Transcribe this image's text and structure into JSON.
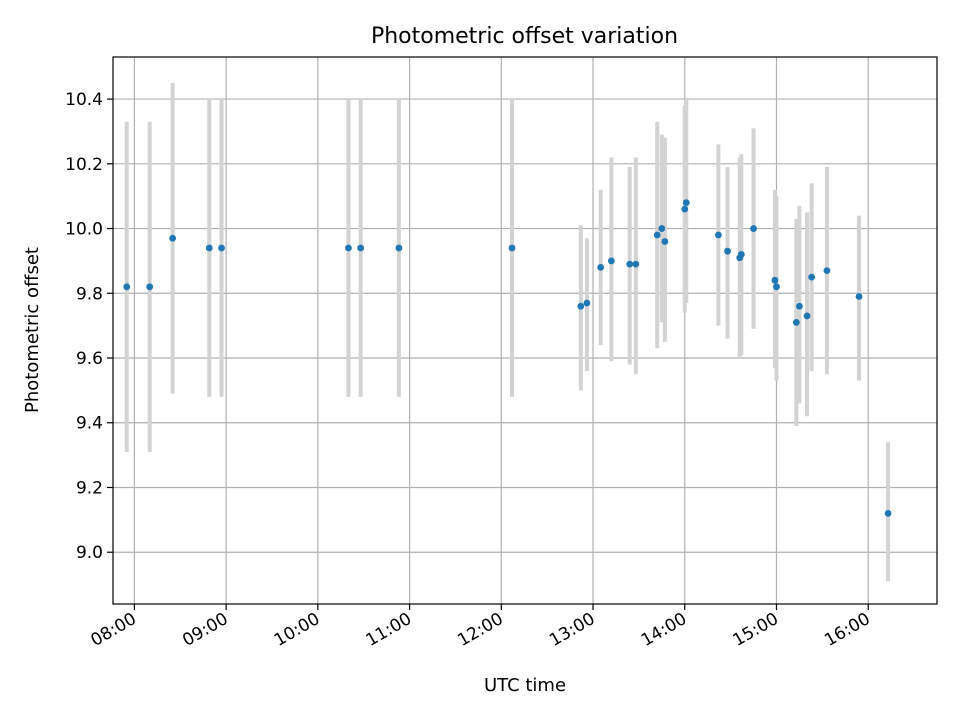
{
  "chart_data": {
    "type": "scatter",
    "title": "Photometric offset variation",
    "xlabel": "UTC time",
    "ylabel": "Photometric offset",
    "x_axis_type": "time",
    "xlim": [
      "07:46",
      "16:45"
    ],
    "ylim": [
      8.84,
      10.53
    ],
    "xticks": [
      "08:00",
      "09:00",
      "10:00",
      "11:00",
      "12:00",
      "13:00",
      "14:00",
      "15:00",
      "16:00"
    ],
    "yticks": [
      "9.0",
      "9.2",
      "9.4",
      "9.6",
      "9.8",
      "10.0",
      "10.2",
      "10.4"
    ],
    "grid": true,
    "error_bars": true,
    "colors": {
      "points": "#1f77b4",
      "error_bars": "#d3d3d3",
      "grid": "#b0b0b0"
    },
    "points": [
      {
        "x": "07:55",
        "y": 9.82,
        "ylow": 9.31,
        "yhigh": 10.33
      },
      {
        "x": "08:10",
        "y": 9.82,
        "ylow": 9.31,
        "yhigh": 10.33
      },
      {
        "x": "08:25",
        "y": 9.97,
        "ylow": 9.49,
        "yhigh": 10.45
      },
      {
        "x": "08:49",
        "y": 9.94,
        "ylow": 9.48,
        "yhigh": 10.4
      },
      {
        "x": "08:57",
        "y": 9.94,
        "ylow": 9.48,
        "yhigh": 10.4
      },
      {
        "x": "10:20",
        "y": 9.94,
        "ylow": 9.48,
        "yhigh": 10.4
      },
      {
        "x": "10:28",
        "y": 9.94,
        "ylow": 9.48,
        "yhigh": 10.4
      },
      {
        "x": "10:53",
        "y": 9.94,
        "ylow": 9.48,
        "yhigh": 10.4
      },
      {
        "x": "12:07",
        "y": 9.94,
        "ylow": 9.48,
        "yhigh": 10.4
      },
      {
        "x": "12:52",
        "y": 9.76,
        "ylow": 9.5,
        "yhigh": 10.01
      },
      {
        "x": "12:56",
        "y": 9.77,
        "ylow": 9.56,
        "yhigh": 9.97
      },
      {
        "x": "13:05",
        "y": 9.88,
        "ylow": 9.64,
        "yhigh": 10.12
      },
      {
        "x": "13:12",
        "y": 9.9,
        "ylow": 9.59,
        "yhigh": 10.22
      },
      {
        "x": "13:24",
        "y": 9.89,
        "ylow": 9.58,
        "yhigh": 10.19
      },
      {
        "x": "13:28",
        "y": 9.89,
        "ylow": 9.55,
        "yhigh": 10.22
      },
      {
        "x": "13:42",
        "y": 9.98,
        "ylow": 9.63,
        "yhigh": 10.33
      },
      {
        "x": "13:45",
        "y": 10.0,
        "ylow": 9.71,
        "yhigh": 10.29
      },
      {
        "x": "13:47",
        "y": 9.96,
        "ylow": 9.65,
        "yhigh": 10.28
      },
      {
        "x": "14:00",
        "y": 10.06,
        "ylow": 9.74,
        "yhigh": 10.38
      },
      {
        "x": "14:01",
        "y": 10.08,
        "ylow": 9.77,
        "yhigh": 10.4
      },
      {
        "x": "14:22",
        "y": 9.98,
        "ylow": 9.7,
        "yhigh": 10.26
      },
      {
        "x": "14:28",
        "y": 9.93,
        "ylow": 9.66,
        "yhigh": 10.19
      },
      {
        "x": "14:36",
        "y": 9.91,
        "ylow": 9.6,
        "yhigh": 10.22
      },
      {
        "x": "14:37",
        "y": 9.92,
        "ylow": 9.61,
        "yhigh": 10.23
      },
      {
        "x": "14:45",
        "y": 10.0,
        "ylow": 9.69,
        "yhigh": 10.31
      },
      {
        "x": "14:59",
        "y": 9.84,
        "ylow": 9.57,
        "yhigh": 10.12
      },
      {
        "x": "15:00",
        "y": 9.82,
        "ylow": 9.53,
        "yhigh": 10.1
      },
      {
        "x": "15:13",
        "y": 9.71,
        "ylow": 9.39,
        "yhigh": 10.03
      },
      {
        "x": "15:15",
        "y": 9.76,
        "ylow": 9.46,
        "yhigh": 10.07
      },
      {
        "x": "15:20",
        "y": 9.73,
        "ylow": 9.42,
        "yhigh": 10.05
      },
      {
        "x": "15:23",
        "y": 9.85,
        "ylow": 9.56,
        "yhigh": 10.14
      },
      {
        "x": "15:33",
        "y": 9.87,
        "ylow": 9.55,
        "yhigh": 10.19
      },
      {
        "x": "15:54",
        "y": 9.79,
        "ylow": 9.53,
        "yhigh": 10.04
      },
      {
        "x": "16:13",
        "y": 9.12,
        "ylow": 8.91,
        "yhigh": 9.34
      }
    ]
  }
}
